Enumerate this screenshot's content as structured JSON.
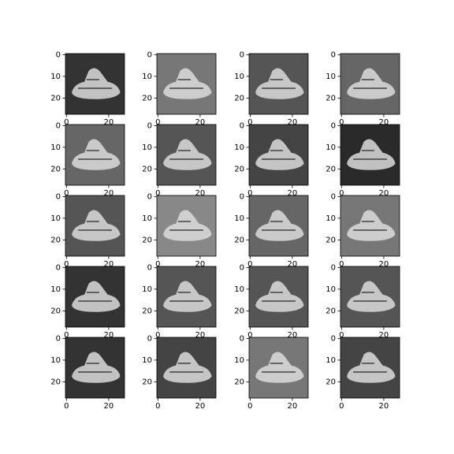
{
  "chart_data": [
    {
      "type": "image",
      "background": "#333333",
      "xlim": [
        -0.5,
        27.5
      ],
      "ylim": [
        27.5,
        -0.5
      ],
      "xticks": [
        0,
        20
      ],
      "yticks": [
        0,
        10,
        20
      ]
    },
    {
      "type": "image",
      "background": "#777777",
      "xlim": [
        -0.5,
        27.5
      ],
      "ylim": [
        27.5,
        -0.5
      ],
      "xticks": [
        0,
        20
      ],
      "yticks": [
        0,
        10,
        20
      ]
    },
    {
      "type": "image",
      "background": "#555555",
      "xlim": [
        -0.5,
        27.5
      ],
      "ylim": [
        27.5,
        -0.5
      ],
      "xticks": [
        0,
        20
      ],
      "yticks": [
        0,
        10,
        20
      ]
    },
    {
      "type": "image",
      "background": "#666666",
      "xlim": [
        -0.5,
        27.5
      ],
      "ylim": [
        27.5,
        -0.5
      ],
      "xticks": [
        0,
        20
      ],
      "yticks": [
        0,
        10,
        20
      ]
    },
    {
      "type": "image",
      "background": "#666666",
      "xlim": [
        -0.5,
        27.5
      ],
      "ylim": [
        27.5,
        -0.5
      ],
      "xticks": [
        0,
        20
      ],
      "yticks": [
        0,
        10,
        20
      ]
    },
    {
      "type": "image",
      "background": "#555555",
      "xlim": [
        -0.5,
        27.5
      ],
      "ylim": [
        27.5,
        -0.5
      ],
      "xticks": [
        0,
        20
      ],
      "yticks": [
        0,
        10,
        20
      ]
    },
    {
      "type": "image",
      "background": "#444444",
      "xlim": [
        -0.5,
        27.5
      ],
      "ylim": [
        27.5,
        -0.5
      ],
      "xticks": [
        0,
        20
      ],
      "yticks": [
        0,
        10,
        20
      ]
    },
    {
      "type": "image",
      "background": "#2a2a2a",
      "xlim": [
        -0.5,
        27.5
      ],
      "ylim": [
        27.5,
        -0.5
      ],
      "xticks": [
        0,
        20
      ],
      "yticks": [
        0,
        10,
        20
      ]
    },
    {
      "type": "image",
      "background": "#555555",
      "xlim": [
        -0.5,
        27.5
      ],
      "ylim": [
        27.5,
        -0.5
      ],
      "xticks": [
        0,
        20
      ],
      "yticks": [
        0,
        10,
        20
      ]
    },
    {
      "type": "image",
      "background": "#888888",
      "xlim": [
        -0.5,
        27.5
      ],
      "ylim": [
        27.5,
        -0.5
      ],
      "xticks": [
        0,
        20
      ],
      "yticks": [
        0,
        10,
        20
      ]
    },
    {
      "type": "image",
      "background": "#666666",
      "xlim": [
        -0.5,
        27.5
      ],
      "ylim": [
        27.5,
        -0.5
      ],
      "xticks": [
        0,
        20
      ],
      "yticks": [
        0,
        10,
        20
      ]
    },
    {
      "type": "image",
      "background": "#777777",
      "xlim": [
        -0.5,
        27.5
      ],
      "ylim": [
        27.5,
        -0.5
      ],
      "xticks": [
        0,
        20
      ],
      "yticks": [
        0,
        10,
        20
      ]
    },
    {
      "type": "image",
      "background": "#333333",
      "xlim": [
        -0.5,
        27.5
      ],
      "ylim": [
        27.5,
        -0.5
      ],
      "xticks": [
        0,
        20
      ],
      "yticks": [
        0,
        10,
        20
      ]
    },
    {
      "type": "image",
      "background": "#555555",
      "xlim": [
        -0.5,
        27.5
      ],
      "ylim": [
        27.5,
        -0.5
      ],
      "xticks": [
        0,
        20
      ],
      "yticks": [
        0,
        10,
        20
      ]
    },
    {
      "type": "image",
      "background": "#555555",
      "xlim": [
        -0.5,
        27.5
      ],
      "ylim": [
        27.5,
        -0.5
      ],
      "xticks": [
        0,
        20
      ],
      "yticks": [
        0,
        10,
        20
      ]
    },
    {
      "type": "image",
      "background": "#555555",
      "xlim": [
        -0.5,
        27.5
      ],
      "ylim": [
        27.5,
        -0.5
      ],
      "xticks": [
        0,
        20
      ],
      "yticks": [
        0,
        10,
        20
      ]
    },
    {
      "type": "image",
      "background": "#333333",
      "xlim": [
        -0.5,
        27.5
      ],
      "ylim": [
        27.5,
        -0.5
      ],
      "xticks": [
        0,
        20
      ],
      "yticks": [
        0,
        10,
        20
      ]
    },
    {
      "type": "image",
      "background": "#444444",
      "xlim": [
        -0.5,
        27.5
      ],
      "ylim": [
        27.5,
        -0.5
      ],
      "xticks": [
        0,
        20
      ],
      "yticks": [
        0,
        10,
        20
      ]
    },
    {
      "type": "image",
      "background": "#777777",
      "xlim": [
        -0.5,
        27.5
      ],
      "ylim": [
        27.5,
        -0.5
      ],
      "xticks": [
        0,
        20
      ],
      "yticks": [
        0,
        10,
        20
      ]
    },
    {
      "type": "image",
      "background": "#444444",
      "xlim": [
        -0.5,
        27.5
      ],
      "ylim": [
        27.5,
        -0.5
      ],
      "xticks": [
        0,
        20
      ],
      "yticks": [
        0,
        10,
        20
      ]
    }
  ]
}
